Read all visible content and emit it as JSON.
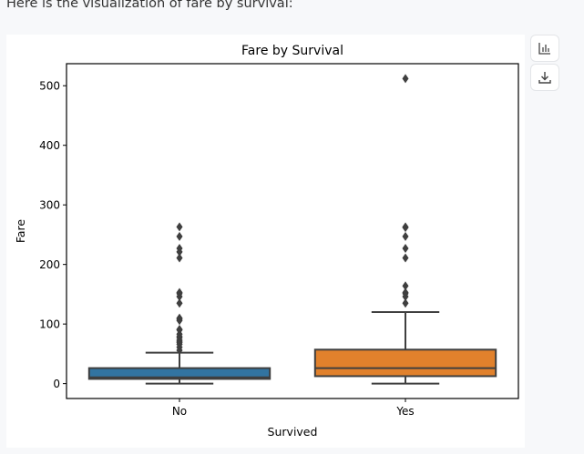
{
  "intro_text": "Here is the visualization of fare by survival:",
  "buttons": {
    "chart": "bar-chart-icon",
    "download": "download-icon"
  },
  "chart_data": {
    "type": "box",
    "title": "Fare by Survival",
    "xlabel": "Survived",
    "ylabel": "Fare",
    "categories": [
      "No",
      "Yes"
    ],
    "ylim": [
      -25,
      537
    ],
    "yticks": [
      0,
      100,
      200,
      300,
      400,
      500
    ],
    "grid": false,
    "colors": [
      "#3274a1",
      "#e1812c"
    ],
    "boxes": [
      {
        "category": "No",
        "whisker_low": 0,
        "q1": 7.9,
        "median": 10.5,
        "q3": 26,
        "whisker_high": 52,
        "outliers": [
          263,
          247,
          227,
          221,
          211,
          153,
          151,
          146,
          135,
          110,
          108,
          106,
          91,
          90,
          83,
          79,
          77,
          73,
          71,
          69,
          66,
          61,
          56
        ]
      },
      {
        "category": "Yes",
        "whisker_low": 0,
        "q1": 12.5,
        "median": 26,
        "q3": 57,
        "whisker_high": 120,
        "outliers": [
          512,
          263,
          262,
          247,
          227,
          211,
          164,
          153,
          151,
          146,
          135
        ]
      }
    ]
  }
}
